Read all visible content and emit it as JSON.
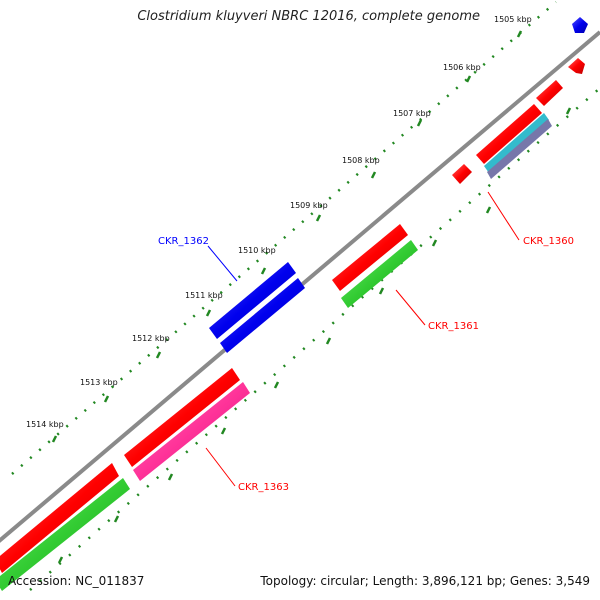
{
  "title": "Clostridium kluyveri NBRC 12016, complete genome",
  "footer": {
    "accession": "Accession: NC_011837",
    "summary": "Topology: circular; Length: 3,896,121 bp; Genes: 3,549"
  },
  "ticks": [
    "1505 kbp",
    "1506 kbp",
    "1507 kbp",
    "1508 kbp",
    "1509 kbp",
    "1510 kbp",
    "1511 kbp",
    "1512 kbp",
    "1513 kbp",
    "1514 kbp"
  ],
  "gene_labels": [
    {
      "text": "CKR_1362",
      "color": "#0000ff"
    },
    {
      "text": "CKR_1360",
      "color": "#ff0000"
    },
    {
      "text": "CKR_1361",
      "color": "#ff0000"
    },
    {
      "text": "CKR_1363",
      "color": "#ff0000"
    }
  ],
  "colors": {
    "backbone": "#8a8a8a",
    "cds": "#ff0000",
    "gene": "#00cc00",
    "rrna": "#0000ee",
    "trna": "#ff3399",
    "teal": "#33bbcc",
    "ruler": "#228822"
  }
}
